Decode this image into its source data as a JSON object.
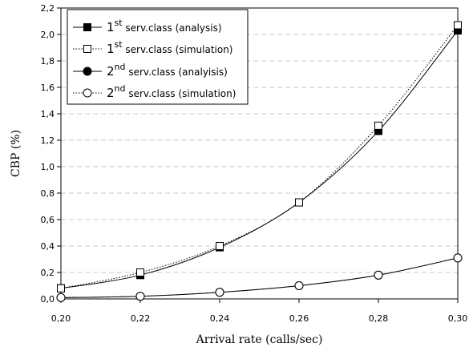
{
  "chart_data": {
    "type": "line",
    "xlabel": "Arrival rate (calls/sec)",
    "ylabel": "CBP (%)",
    "xlim": [
      0.2,
      0.3
    ],
    "ylim": [
      0.0,
      2.2
    ],
    "xticks": [
      "0,20",
      "0,22",
      "0,24",
      "0,26",
      "0,28",
      "0,30"
    ],
    "yticks": [
      "0,0",
      "0,2",
      "0,4",
      "0,6",
      "0,8",
      "1,0",
      "1,2",
      "1,4",
      "1,6",
      "1,8",
      "2,0",
      "2,2"
    ],
    "grid": "horizontal, dashed",
    "legend_position": "top-left",
    "x": [
      0.2,
      0.22,
      0.24,
      0.26,
      0.28,
      0.3
    ],
    "series": [
      {
        "name_prefix": "1",
        "name_sup": "st",
        "name_rest": " serv.class (analysis)",
        "values": [
          0.08,
          0.18,
          0.39,
          0.73,
          1.27,
          2.03
        ],
        "line": "solid",
        "marker": "filled-square",
        "color": "#000000"
      },
      {
        "name_prefix": "1",
        "name_sup": "st",
        "name_rest": " serv.class (simulation)",
        "values": [
          0.08,
          0.2,
          0.4,
          0.73,
          1.31,
          2.07
        ],
        "line": "dotted",
        "marker": "open-square",
        "color": "#000000"
      },
      {
        "name_prefix": "2",
        "name_sup": "nd",
        "name_rest": " serv.class (analyisis)",
        "values": [
          0.01,
          0.02,
          0.05,
          0.1,
          0.18,
          0.31
        ],
        "line": "solid",
        "marker": "filled-circle",
        "color": "#000000"
      },
      {
        "name_prefix": "2",
        "name_sup": "nd",
        "name_rest": " serv.class (simulation)",
        "values": [
          0.01,
          0.02,
          0.05,
          0.1,
          0.18,
          0.31
        ],
        "line": "dotted",
        "marker": "open-circle",
        "color": "#000000"
      }
    ]
  }
}
